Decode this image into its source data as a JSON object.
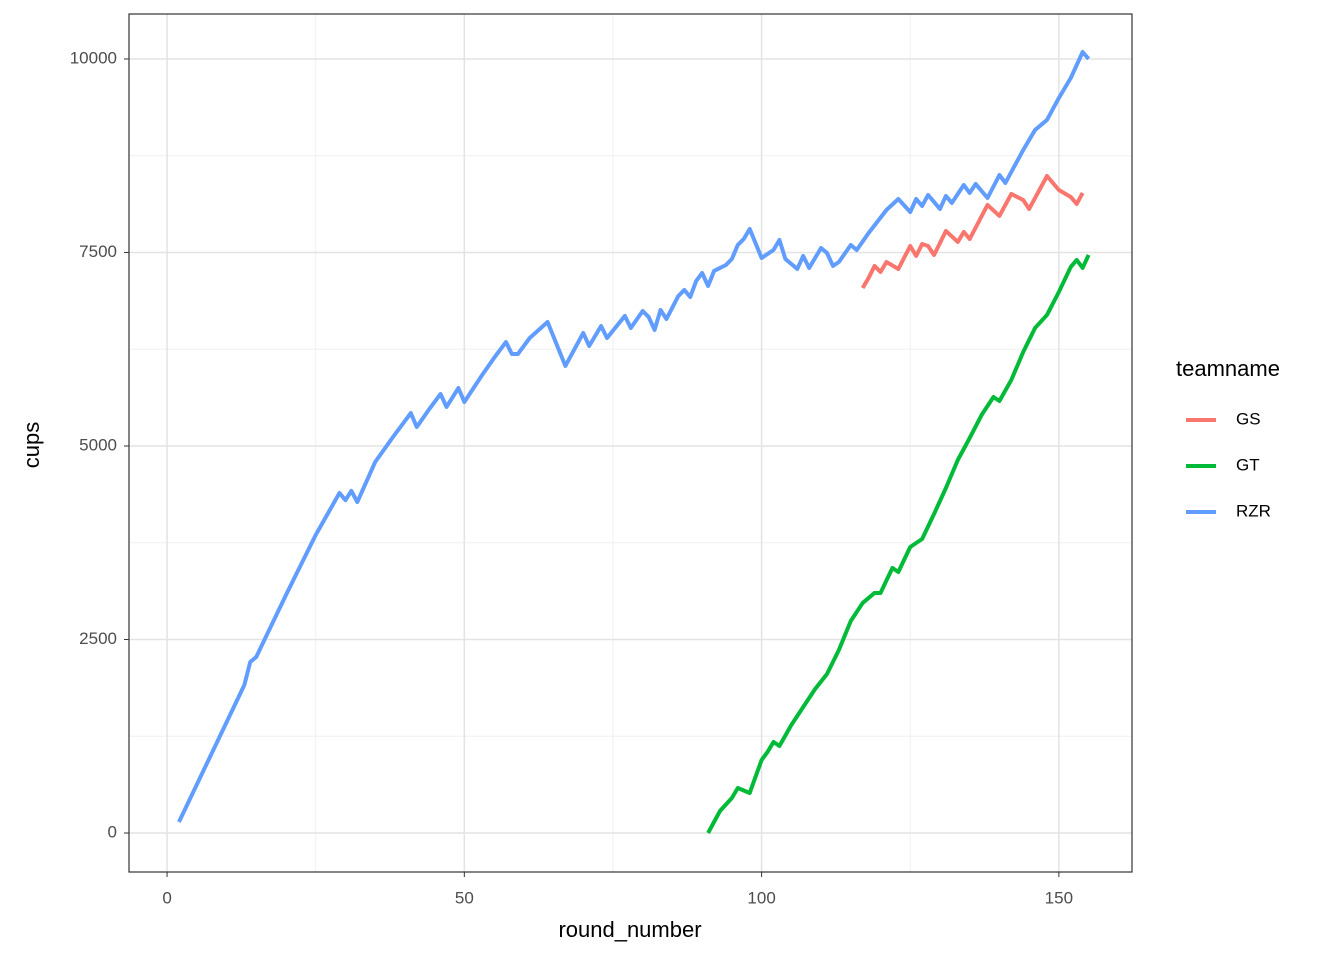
{
  "chart_data": {
    "type": "line",
    "x_label": "round_number",
    "y_label": "cups",
    "legend_title": "teamname",
    "xlim": [
      -6.4,
      162.3
    ],
    "ylim": [
      -504,
      10581
    ],
    "xticks": [
      0,
      50,
      100,
      150
    ],
    "yticks": [
      0,
      2500,
      5000,
      7500,
      10000
    ],
    "x_minor_grid": [
      25,
      75,
      125
    ],
    "y_minor_grid": [
      1250,
      3750,
      6250,
      8750
    ],
    "grid": true,
    "legend": "right",
    "series": [
      {
        "name": "GS",
        "color": "#F8766D",
        "x": [
          117,
          118,
          119,
          120,
          121,
          123,
          125,
          126,
          127,
          128,
          129,
          131,
          133,
          134,
          135,
          138,
          140,
          142,
          144,
          145,
          148,
          150,
          152,
          153,
          154
        ],
        "values": [
          7041,
          7171,
          7326,
          7248,
          7377,
          7287,
          7584,
          7455,
          7610,
          7584,
          7468,
          7778,
          7636,
          7765,
          7674,
          8114,
          7972,
          8256,
          8178,
          8062,
          8488,
          8307,
          8217,
          8127,
          8269
        ]
      },
      {
        "name": "GT",
        "color": "#00BA38",
        "x": [
          91,
          93,
          95,
          96,
          98,
          100,
          101,
          102,
          103,
          105,
          107,
          109,
          111,
          113,
          115,
          117,
          119,
          120,
          122,
          123,
          125,
          127,
          129,
          131,
          133,
          135,
          137,
          139,
          140,
          142,
          144,
          146,
          148,
          150,
          152,
          153,
          154,
          155
        ],
        "values": [
          0,
          284,
          452,
          581,
          517,
          943,
          1047,
          1176,
          1124,
          1395,
          1628,
          1860,
          2054,
          2364,
          2739,
          2972,
          3101,
          3101,
          3424,
          3372,
          3695,
          3798,
          4121,
          4457,
          4819,
          5103,
          5400,
          5633,
          5581,
          5853,
          6214,
          6525,
          6693,
          6990,
          7313,
          7403,
          7300,
          7468
        ]
      },
      {
        "name": "RZR",
        "color": "#619CFF",
        "x": [
          2,
          13,
          14,
          15,
          20,
          25,
          29,
          30,
          31,
          32,
          35,
          38,
          41,
          42,
          44,
          46,
          47,
          49,
          50,
          53,
          55,
          57,
          58,
          59,
          61,
          64,
          67,
          70,
          71,
          73,
          74,
          77,
          78,
          80,
          81,
          82,
          83,
          84,
          86,
          87,
          88,
          89,
          90,
          91,
          92,
          94,
          95,
          96,
          97,
          98,
          100,
          102,
          103,
          104,
          106,
          107,
          108,
          110,
          111,
          112,
          113,
          115,
          116,
          118,
          121,
          123,
          125,
          126,
          127,
          128,
          130,
          131,
          132,
          134,
          135,
          136,
          138,
          140,
          141,
          144,
          146,
          148,
          150,
          152,
          154,
          155
        ],
        "values": [
          142,
          1912,
          2210,
          2274,
          3075,
          3850,
          4393,
          4300,
          4420,
          4276,
          4793,
          5116,
          5426,
          5245,
          5465,
          5672,
          5504,
          5749,
          5568,
          5917,
          6137,
          6343,
          6188,
          6188,
          6395,
          6602,
          6034,
          6460,
          6292,
          6550,
          6395,
          6680,
          6524,
          6744,
          6667,
          6499,
          6757,
          6641,
          6938,
          7016,
          6925,
          7132,
          7235,
          7067,
          7261,
          7338,
          7416,
          7597,
          7674,
          7804,
          7429,
          7532,
          7661,
          7416,
          7287,
          7455,
          7300,
          7558,
          7494,
          7326,
          7377,
          7597,
          7532,
          7752,
          8049,
          8191,
          8023,
          8191,
          8101,
          8243,
          8062,
          8230,
          8140,
          8372,
          8269,
          8385,
          8204,
          8501,
          8398,
          8824,
          9083,
          9212,
          9496,
          9754,
          10090,
          10000
        ]
      }
    ]
  }
}
